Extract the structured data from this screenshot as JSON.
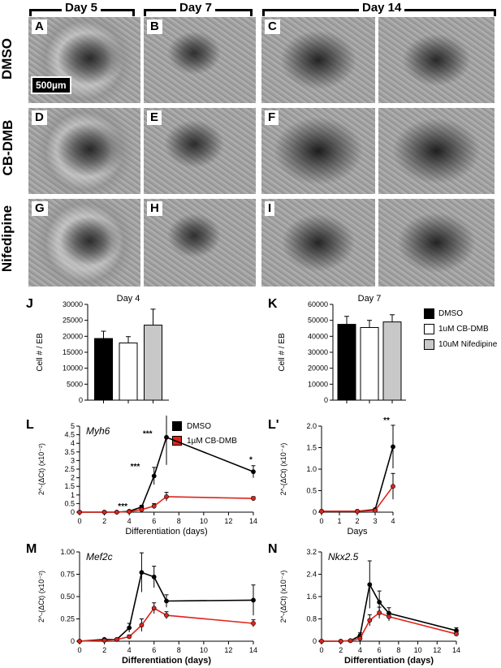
{
  "headers": {
    "day5": "Day 5",
    "day7": "Day 7",
    "day14": "Day 14"
  },
  "rows": [
    "DMSO",
    "CB-DMB",
    "Nifedipine"
  ],
  "panel_letters": [
    "A",
    "B",
    "C",
    "D",
    "E",
    "F",
    "G",
    "H",
    "I"
  ],
  "scale_bar": "500µm",
  "chart_letters": {
    "J": "J",
    "K": "K",
    "L": "L",
    "Lp": "L'",
    "M": "M",
    "N": "N"
  },
  "legend_bars": [
    "DMSO",
    "1uM CB-DMB",
    "10uM Nifedipine"
  ],
  "legend_lines": [
    "DMSO",
    "1µM CB-DMB"
  ],
  "colors": {
    "dmso": "#000000",
    "cbdmb": "#ffffff",
    "nifedipine": "#c8c8c8",
    "red": "#e0241b"
  },
  "chart_data": [
    {
      "id": "J",
      "type": "bar",
      "title": "Day 4",
      "ylabel": "Cell # / EB",
      "categories": [
        "DMSO",
        "1uM CB-DMB",
        "10uM Nifedipine"
      ],
      "values": [
        19300,
        17900,
        23500
      ],
      "errors": [
        2300,
        2000,
        5000
      ],
      "ylim": [
        0,
        30000
      ],
      "yticks": [
        "0",
        "5000",
        "10000",
        "15000",
        "20000",
        "25000",
        "30000"
      ]
    },
    {
      "id": "K",
      "type": "bar",
      "title": "Day 7",
      "ylabel": "Cell # / EB",
      "categories": [
        "DMSO",
        "1uM CB-DMB",
        "10uM Nifedipine"
      ],
      "values": [
        47500,
        45500,
        49000
      ],
      "errors": [
        5000,
        4500,
        4500
      ],
      "ylim": [
        0,
        60000
      ],
      "yticks": [
        "0",
        "10000",
        "20000",
        "30000",
        "40000",
        "50000",
        "60000"
      ]
    },
    {
      "id": "L",
      "type": "line",
      "gene": "Myh6",
      "ylabel": "2^-(ΔCt) (x10⁻²)",
      "xlabel": "Differentiation (days)",
      "xlim": [
        0,
        14
      ],
      "ylim": [
        0,
        5
      ],
      "xticks": [
        "0",
        "2",
        "4",
        "6",
        "8",
        "10",
        "12",
        "14"
      ],
      "yticks": [
        "0",
        "0.5",
        "1",
        "1.5",
        "2",
        "2.5",
        "3",
        "3.5",
        "4",
        "4.5",
        "5"
      ],
      "x": [
        0,
        2,
        3,
        4,
        5,
        6,
        7,
        14
      ],
      "series": [
        {
          "name": "DMSO",
          "values": [
            0,
            0,
            0,
            0.05,
            0.3,
            2.1,
            4.35,
            2.35
          ],
          "errors": [
            0,
            0,
            0,
            0.03,
            0.1,
            0.5,
            1.6,
            0.35
          ]
        },
        {
          "name": "1µM CB-DMB",
          "values": [
            0,
            0,
            0,
            0.03,
            0.15,
            0.35,
            0.9,
            0.8
          ],
          "errors": [
            0,
            0,
            0,
            0.02,
            0.05,
            0.15,
            0.25,
            0.1
          ]
        }
      ],
      "annotations": [
        {
          "x": 4,
          "y": 0.2,
          "text": "***"
        },
        {
          "x": 5,
          "y": 2.5,
          "text": "***"
        },
        {
          "x": 6,
          "y": 4.4,
          "text": "***"
        },
        {
          "x": 14,
          "y": 2.9,
          "text": "*"
        }
      ]
    },
    {
      "id": "Lp",
      "type": "line",
      "ylabel": "2^-(ΔCt) (x10⁻⁴)",
      "xlabel": "Days",
      "xlim": [
        0,
        4
      ],
      "ylim": [
        0,
        2.0
      ],
      "xticks": [
        "0",
        "1",
        "2",
        "3",
        "4"
      ],
      "yticks": [
        "0",
        "0.5",
        "1.0",
        "1.5",
        "2.0"
      ],
      "x": [
        0,
        2,
        3,
        4
      ],
      "series": [
        {
          "name": "DMSO",
          "values": [
            0.02,
            0.02,
            0.06,
            1.52
          ],
          "errors": [
            0.01,
            0.01,
            0.02,
            0.5
          ]
        },
        {
          "name": "1µM CB-DMB",
          "values": [
            0.02,
            0.02,
            0.04,
            0.6
          ],
          "errors": [
            0.01,
            0.01,
            0.02,
            0.3
          ]
        }
      ],
      "annotations": [
        {
          "x": 4,
          "y": 2.08,
          "text": "**"
        }
      ]
    },
    {
      "id": "M",
      "type": "line",
      "gene": "Mef2c",
      "ylabel": "2^-(ΔCt) (x10⁻²)",
      "xlabel": "Differentiation (days)",
      "xlim": [
        0,
        14
      ],
      "ylim": [
        0,
        1.0
      ],
      "xticks": [
        "0",
        "2",
        "4",
        "6",
        "8",
        "10",
        "12",
        "14"
      ],
      "yticks": [
        "0",
        "0.25",
        "0.50",
        "0.75",
        "1.00"
      ],
      "x": [
        0,
        2,
        3,
        4,
        5,
        6,
        7,
        14
      ],
      "series": [
        {
          "name": "DMSO",
          "values": [
            0,
            0.02,
            0.02,
            0.15,
            0.77,
            0.72,
            0.45,
            0.46
          ],
          "errors": [
            0,
            0.01,
            0.01,
            0.05,
            0.22,
            0.12,
            0.07,
            0.17
          ]
        },
        {
          "name": "1µM CB-DMB",
          "values": [
            0,
            0.01,
            0.02,
            0.05,
            0.18,
            0.37,
            0.29,
            0.2
          ],
          "errors": [
            0,
            0.01,
            0.01,
            0.02,
            0.07,
            0.06,
            0.04,
            0.04
          ]
        }
      ],
      "annotations": []
    },
    {
      "id": "N",
      "type": "line",
      "gene": "Nkx2.5",
      "ylabel": "2^-(ΔCt) (x10⁻⁴)",
      "xlabel": "Differentiation (days)",
      "xlim": [
        0,
        14
      ],
      "ylim": [
        0,
        3.2
      ],
      "xticks": [
        "0",
        "2",
        "4",
        "6",
        "8",
        "10",
        "12",
        "14"
      ],
      "yticks": [
        "0",
        "0.8",
        "1.6",
        "2.4",
        "3.2"
      ],
      "x": [
        0,
        2,
        3,
        4,
        5,
        6,
        7,
        14
      ],
      "series": [
        {
          "name": "DMSO",
          "values": [
            0,
            0,
            0.02,
            0.2,
            2.03,
            1.4,
            1.0,
            0.38
          ],
          "errors": [
            0,
            0,
            0.01,
            0.1,
            0.85,
            0.4,
            0.2,
            0.1
          ]
        },
        {
          "name": "1µM CB-DMB",
          "values": [
            0,
            0,
            0.02,
            0.1,
            0.75,
            1.02,
            0.88,
            0.26
          ],
          "errors": [
            0,
            0,
            0.01,
            0.05,
            0.2,
            0.2,
            0.15,
            0.06
          ]
        }
      ],
      "annotations": []
    }
  ]
}
